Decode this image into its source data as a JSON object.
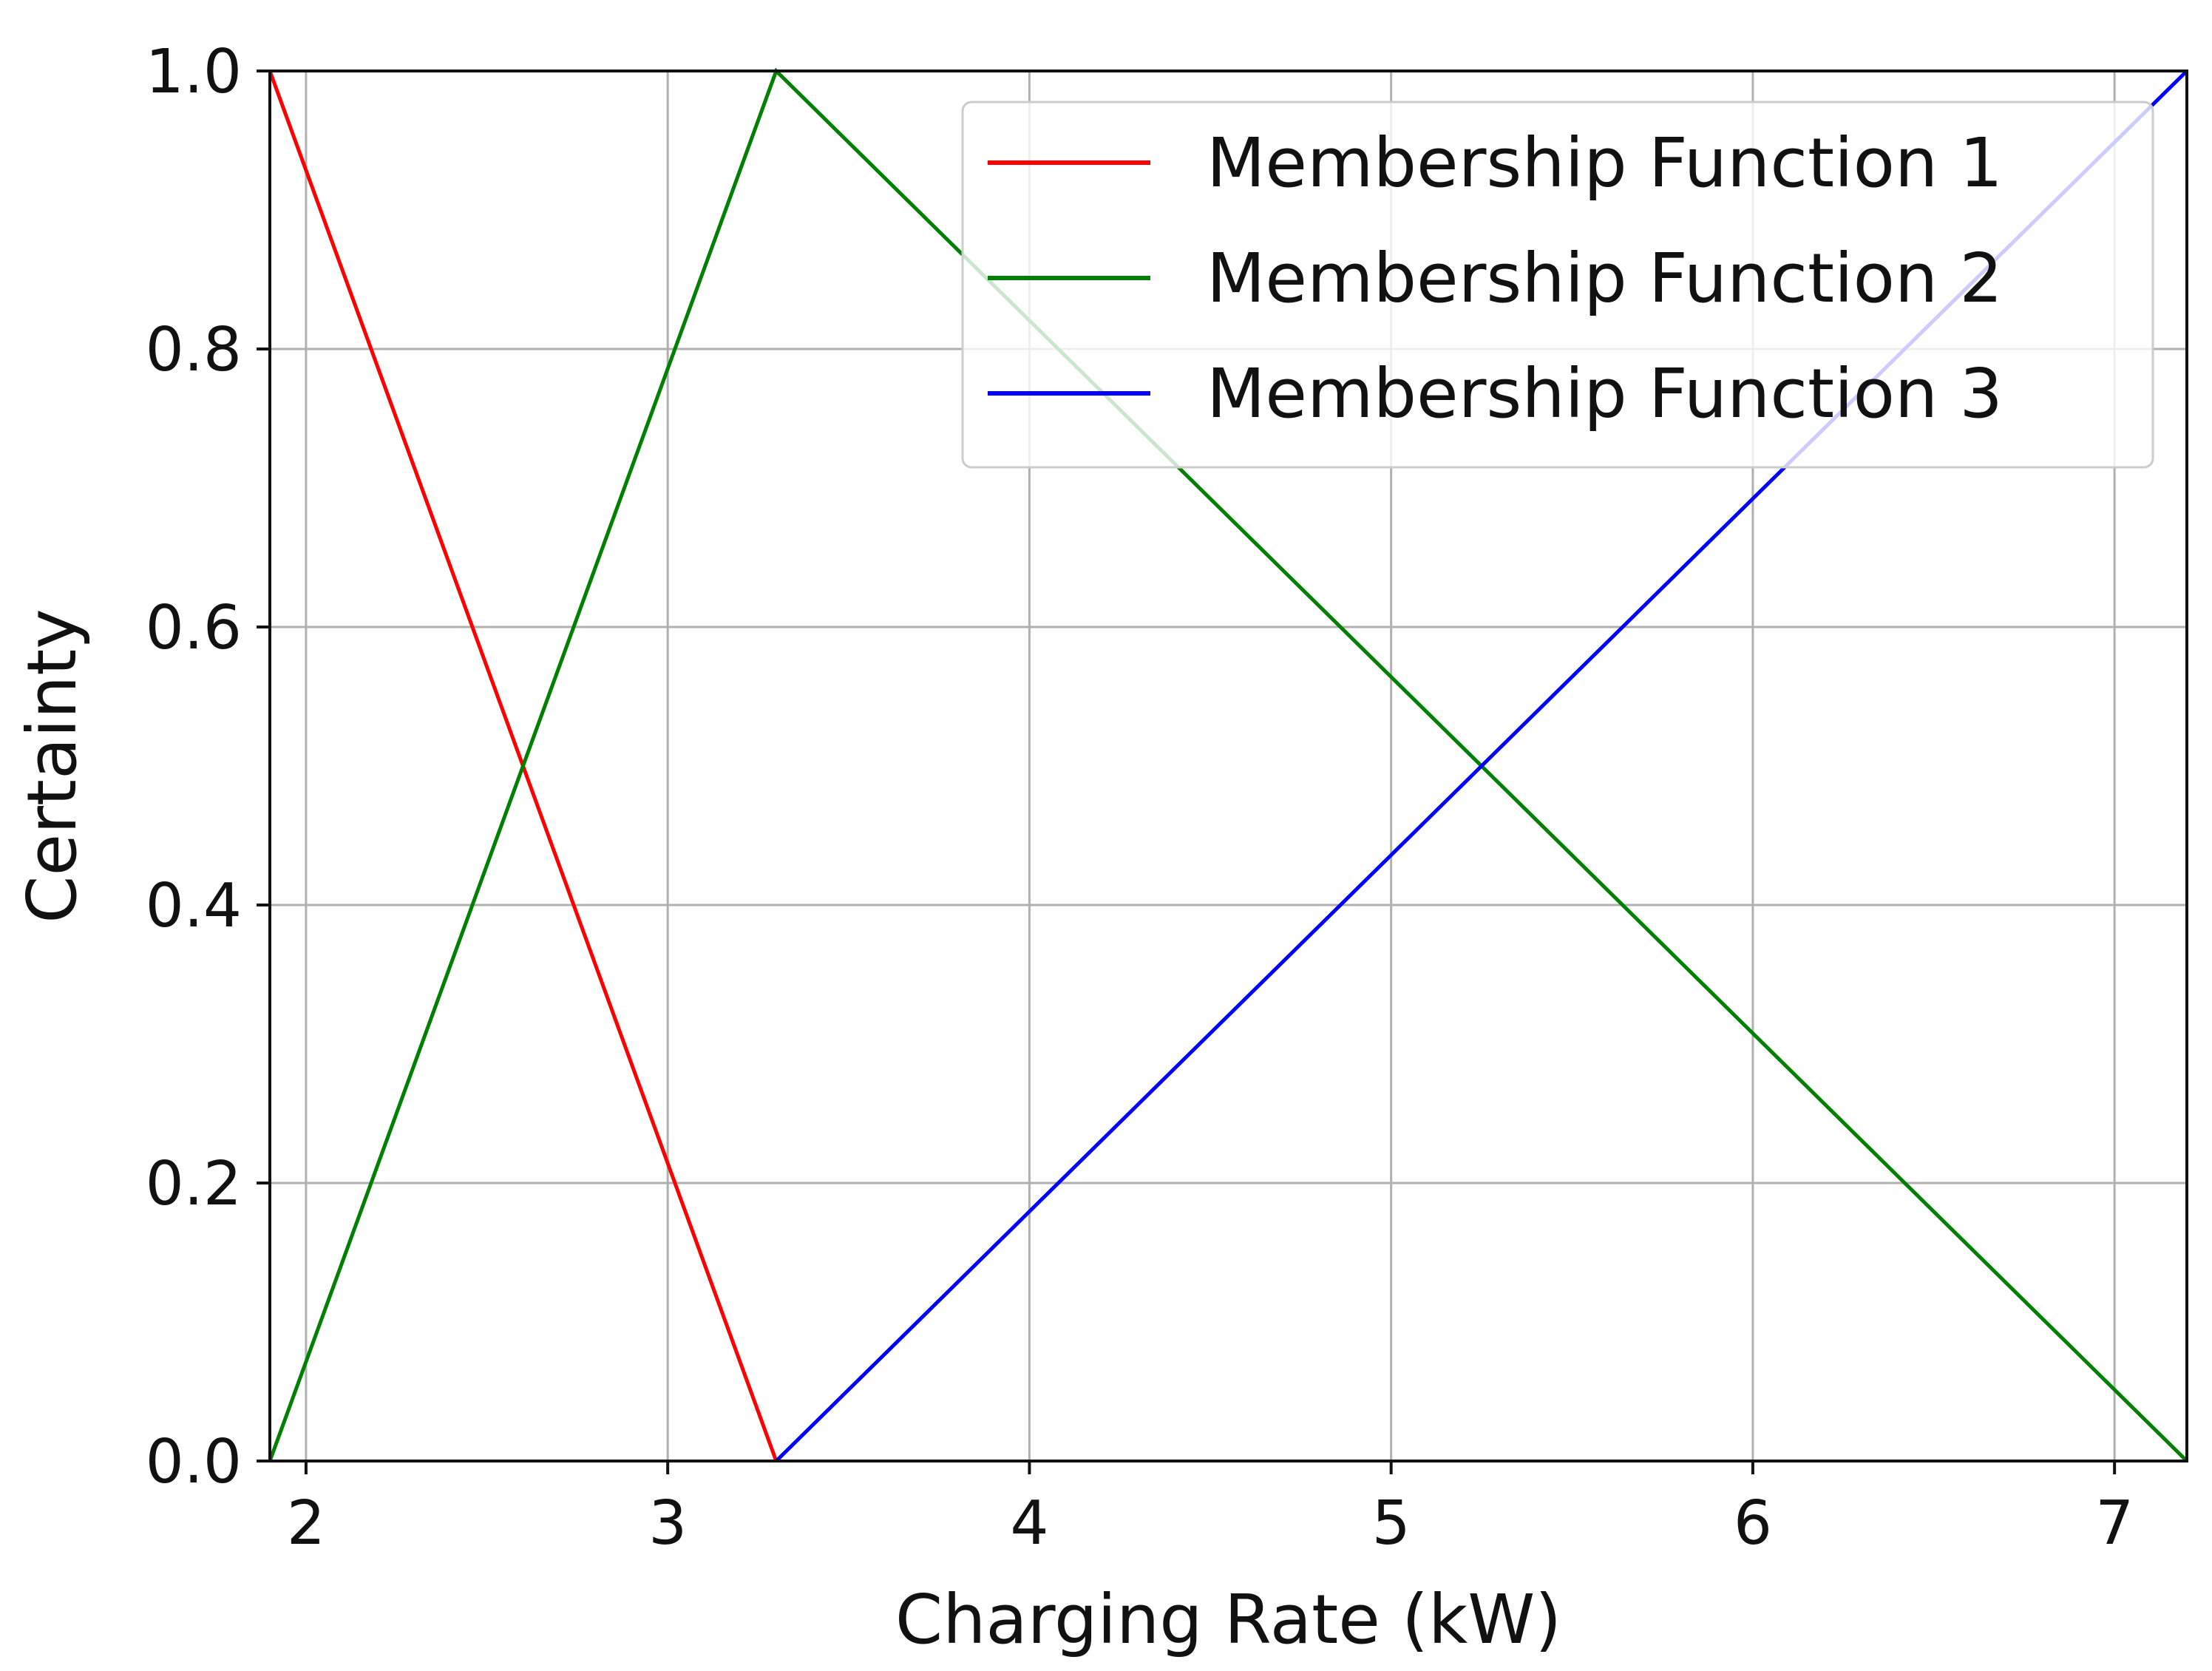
{
  "chart_data": {
    "type": "line",
    "title": "",
    "xlabel": "Charging Rate (kW)",
    "ylabel": "Certainty",
    "xlim": [
      1.9,
      7.2
    ],
    "ylim": [
      0.0,
      1.0
    ],
    "x_ticks": [
      2,
      3,
      4,
      5,
      6,
      7
    ],
    "x_tick_labels": [
      "2",
      "3",
      "4",
      "5",
      "6",
      "7"
    ],
    "y_ticks": [
      0.0,
      0.2,
      0.4,
      0.6,
      0.8,
      1.0
    ],
    "y_tick_labels": [
      "0.0",
      "0.2",
      "0.4",
      "0.6",
      "0.8",
      "1.0"
    ],
    "grid": true,
    "legend_position": "top-right",
    "series": [
      {
        "name": "Membership Function 1",
        "color": "#ff0000",
        "x": [
          1.9,
          3.3
        ],
        "y": [
          1.0,
          0.0
        ]
      },
      {
        "name": "Membership Function 2",
        "color": "#008000",
        "x": [
          1.9,
          3.3,
          7.2
        ],
        "y": [
          0.0,
          1.0,
          0.0
        ]
      },
      {
        "name": "Membership Function 3",
        "color": "#0000ff",
        "x": [
          3.3,
          7.2
        ],
        "y": [
          0.0,
          1.0
        ]
      }
    ]
  }
}
